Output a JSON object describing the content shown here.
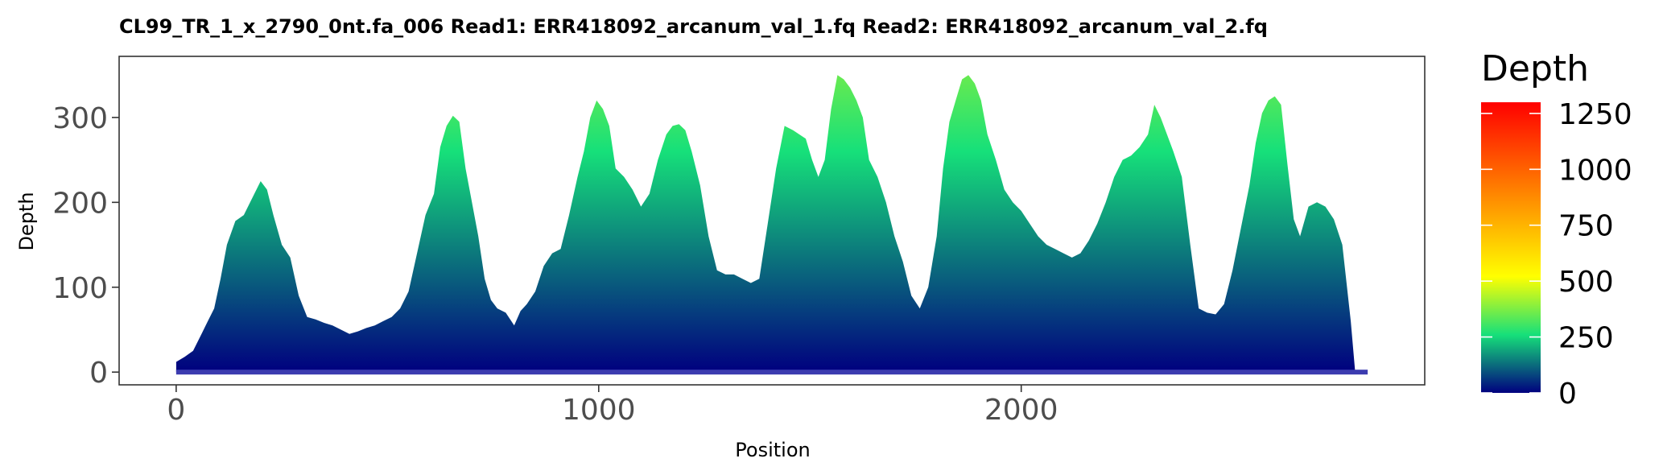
{
  "chart_data": {
    "type": "area",
    "title": "CL99_TR_1_x_2790_0nt.fa_006   Read1: ERR418092_arcanum_val_1.fq   Read2: ERR418092_arcanum_val_2.fq",
    "xlabel": "Position",
    "ylabel": "Depth",
    "xlim": [
      -135,
      2955
    ],
    "ylim": [
      -15,
      372
    ],
    "x_ticks": [
      0,
      1000,
      2000
    ],
    "x_tick_labels": [
      "0",
      "1000",
      "2000"
    ],
    "y_ticks": [
      0,
      100,
      200,
      300
    ],
    "y_tick_labels": [
      "0",
      "100",
      "200",
      "300"
    ],
    "grid": false,
    "x": [
      0,
      20,
      40,
      60,
      75,
      90,
      105,
      120,
      140,
      160,
      180,
      200,
      215,
      230,
      250,
      270,
      290,
      310,
      330,
      350,
      370,
      390,
      410,
      430,
      450,
      470,
      490,
      510,
      530,
      550,
      570,
      590,
      610,
      625,
      640,
      655,
      670,
      685,
      700,
      715,
      730,
      745,
      760,
      780,
      800,
      815,
      830,
      850,
      870,
      890,
      910,
      930,
      950,
      965,
      980,
      995,
      1010,
      1025,
      1040,
      1060,
      1080,
      1100,
      1120,
      1140,
      1160,
      1175,
      1190,
      1205,
      1220,
      1240,
      1260,
      1280,
      1300,
      1320,
      1340,
      1360,
      1380,
      1400,
      1420,
      1440,
      1460,
      1475,
      1490,
      1505,
      1520,
      1535,
      1550,
      1565,
      1580,
      1595,
      1610,
      1625,
      1640,
      1660,
      1680,
      1700,
      1720,
      1740,
      1760,
      1780,
      1800,
      1815,
      1830,
      1845,
      1860,
      1875,
      1890,
      1905,
      1920,
      1940,
      1960,
      1980,
      2000,
      2020,
      2040,
      2060,
      2080,
      2100,
      2120,
      2140,
      2160,
      2180,
      2200,
      2220,
      2240,
      2260,
      2280,
      2300,
      2315,
      2330,
      2345,
      2360,
      2380,
      2400,
      2420,
      2440,
      2460,
      2480,
      2500,
      2520,
      2540,
      2555,
      2570,
      2585,
      2600,
      2615,
      2630,
      2645,
      2660,
      2680,
      2700,
      2720,
      2740,
      2760,
      2780,
      2790
    ],
    "values": [
      12,
      18,
      25,
      45,
      60,
      75,
      110,
      150,
      178,
      185,
      205,
      225,
      215,
      185,
      150,
      135,
      90,
      65,
      62,
      58,
      55,
      50,
      45,
      48,
      52,
      55,
      60,
      65,
      75,
      95,
      140,
      185,
      210,
      265,
      290,
      302,
      295,
      240,
      200,
      160,
      110,
      85,
      75,
      70,
      55,
      72,
      80,
      95,
      125,
      140,
      145,
      185,
      230,
      260,
      300,
      320,
      310,
      290,
      240,
      230,
      215,
      195,
      210,
      250,
      280,
      290,
      292,
      285,
      260,
      220,
      160,
      120,
      115,
      115,
      110,
      105,
      110,
      175,
      240,
      290,
      285,
      280,
      275,
      250,
      230,
      250,
      310,
      350,
      345,
      335,
      320,
      300,
      250,
      230,
      200,
      160,
      130,
      90,
      75,
      100,
      160,
      240,
      295,
      320,
      345,
      350,
      340,
      320,
      280,
      250,
      215,
      200,
      190,
      175,
      160,
      150,
      145,
      140,
      135,
      140,
      155,
      175,
      200,
      230,
      250,
      255,
      265,
      280,
      315,
      300,
      280,
      260,
      230,
      150,
      75,
      70,
      68,
      80,
      120,
      170,
      220,
      270,
      305,
      320,
      325,
      315,
      245,
      180,
      160,
      195,
      200,
      195,
      180,
      150,
      60,
      2
    ]
  },
  "legend": {
    "title": "Depth",
    "position": "right",
    "ticks": [
      0,
      250,
      500,
      750,
      1000,
      1250
    ],
    "tick_labels": [
      "0",
      "250",
      "500",
      "750",
      "1000",
      "1250"
    ],
    "range": [
      0,
      1300
    ],
    "colors": [
      "#00007f",
      "#16e07a",
      "#ffff00",
      "#ff0000"
    ],
    "stops": [
      0,
      0.2,
      0.4,
      1
    ]
  },
  "baseline_color": "#3c3cb0"
}
